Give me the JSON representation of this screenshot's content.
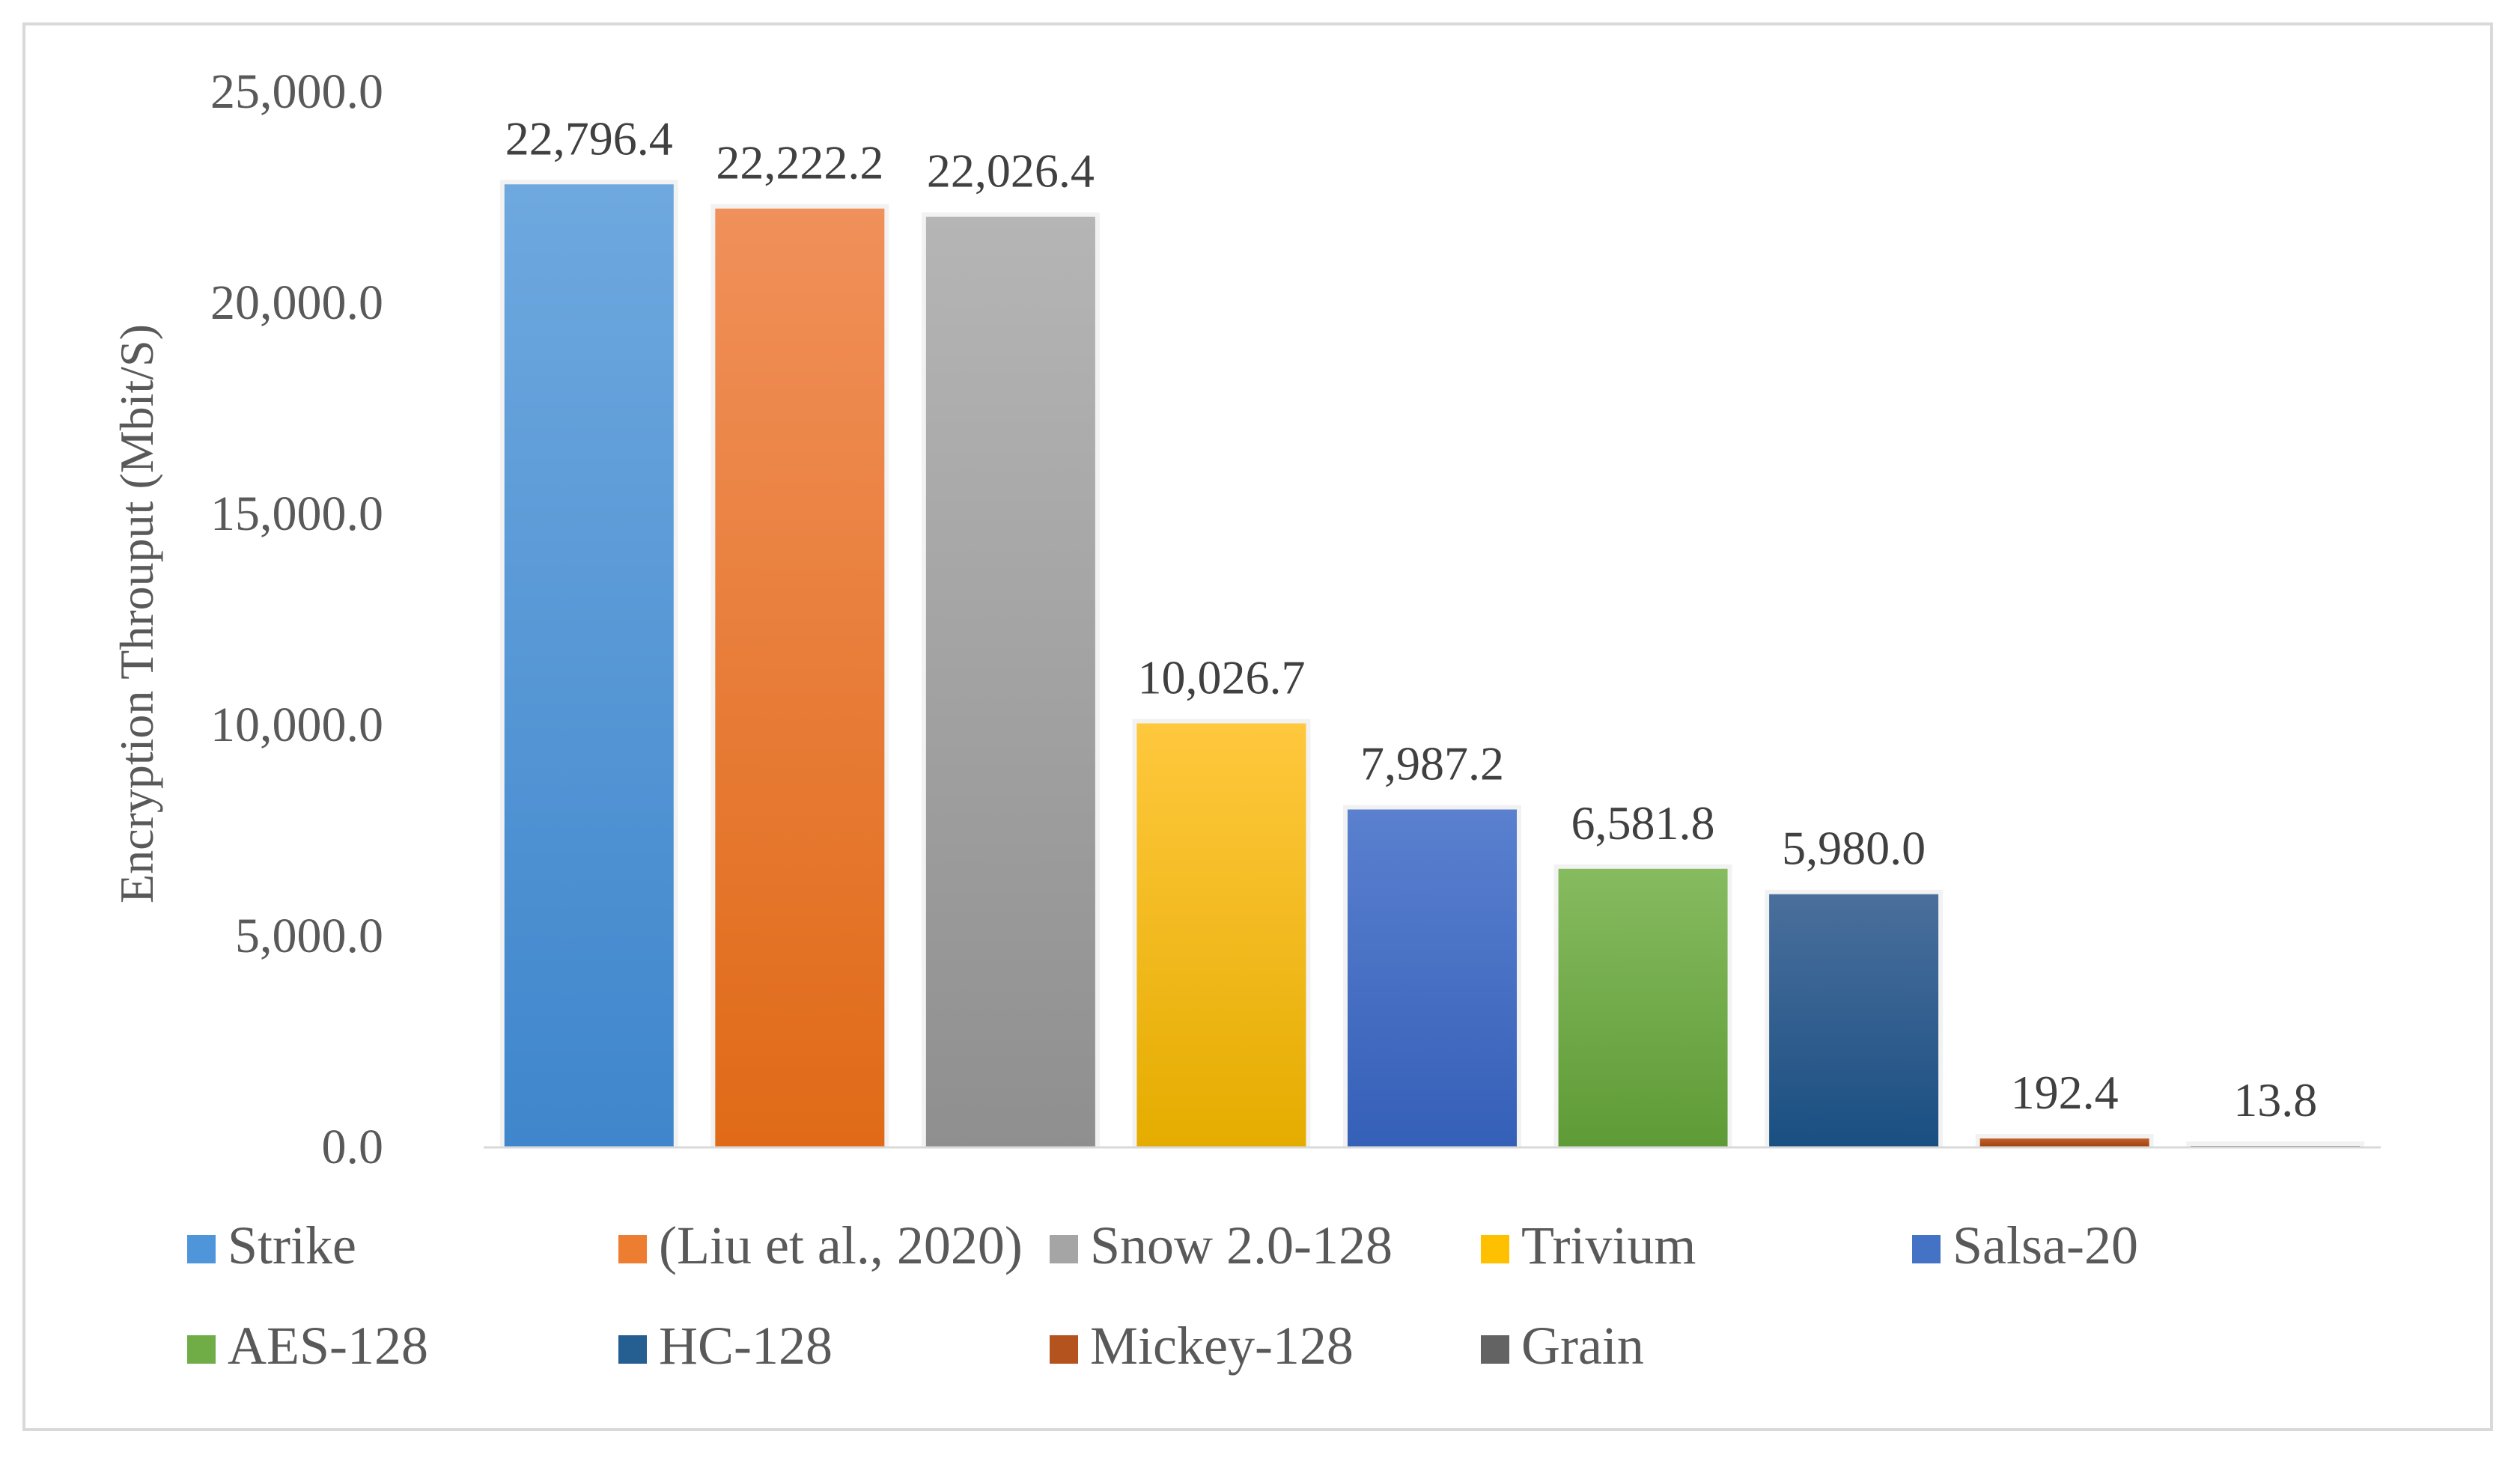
{
  "chart_data": {
    "type": "bar",
    "title": "",
    "xlabel": "",
    "ylabel": "Encryption Throuput (Mbit/S)",
    "ylim": [
      0,
      25000
    ],
    "yticks": [
      0,
      5000,
      10000,
      15000,
      20000,
      25000
    ],
    "ytick_labels": [
      "0.0",
      "5,000.0",
      "10,000.0",
      "15,000.0",
      "20,000.0",
      "25,000.0"
    ],
    "grid": false,
    "legend_position": "bottom",
    "series": [
      {
        "name": "Strike",
        "value": 22796.4,
        "label": "22,796.4",
        "color": "#4e95d9",
        "color_top": "#6ea8df",
        "color_bottom": "#3f86cc"
      },
      {
        "name": "(Liu et al., 2020)",
        "value": 22222.2,
        "label": "22,222.2",
        "color": "#ed7d31",
        "color_top": "#f0905a",
        "color_bottom": "#e06a17"
      },
      {
        "name": "Snow 2.0-128",
        "value": 22026.4,
        "label": "22,026.4",
        "color": "#a5a5a5",
        "color_top": "#b5b5b5",
        "color_bottom": "#8f8f8f"
      },
      {
        "name": "Trivium",
        "value": 10026.7,
        "label": "10,026.7",
        "color": "#ffc000",
        "color_top": "#ffc83d",
        "color_bottom": "#e5ac00"
      },
      {
        "name": "Salsa-20",
        "value": 7987.2,
        "label": "7,987.2",
        "color": "#4472c4",
        "color_top": "#5a80cf",
        "color_bottom": "#3560b8"
      },
      {
        "name": "AES-128",
        "value": 6581.8,
        "label": "6,581.8",
        "color": "#70ad47",
        "color_top": "#86bb5f",
        "color_bottom": "#5e9b36"
      },
      {
        "name": "HC-128",
        "value": 5980.0,
        "label": "5,980.0",
        "color": "#255e91",
        "color_top": "#4a6f9c",
        "color_bottom": "#1a4f82"
      },
      {
        "name": "Mickey-128",
        "value": 192.4,
        "label": "192.4",
        "color": "#b5531e",
        "color_top": "#c5602a",
        "color_bottom": "#9e4312"
      },
      {
        "name": "Grain",
        "value": 13.8,
        "label": "13.8",
        "color": "#636363",
        "color_top": "#7a7a7a",
        "color_bottom": "#525252"
      }
    ]
  }
}
